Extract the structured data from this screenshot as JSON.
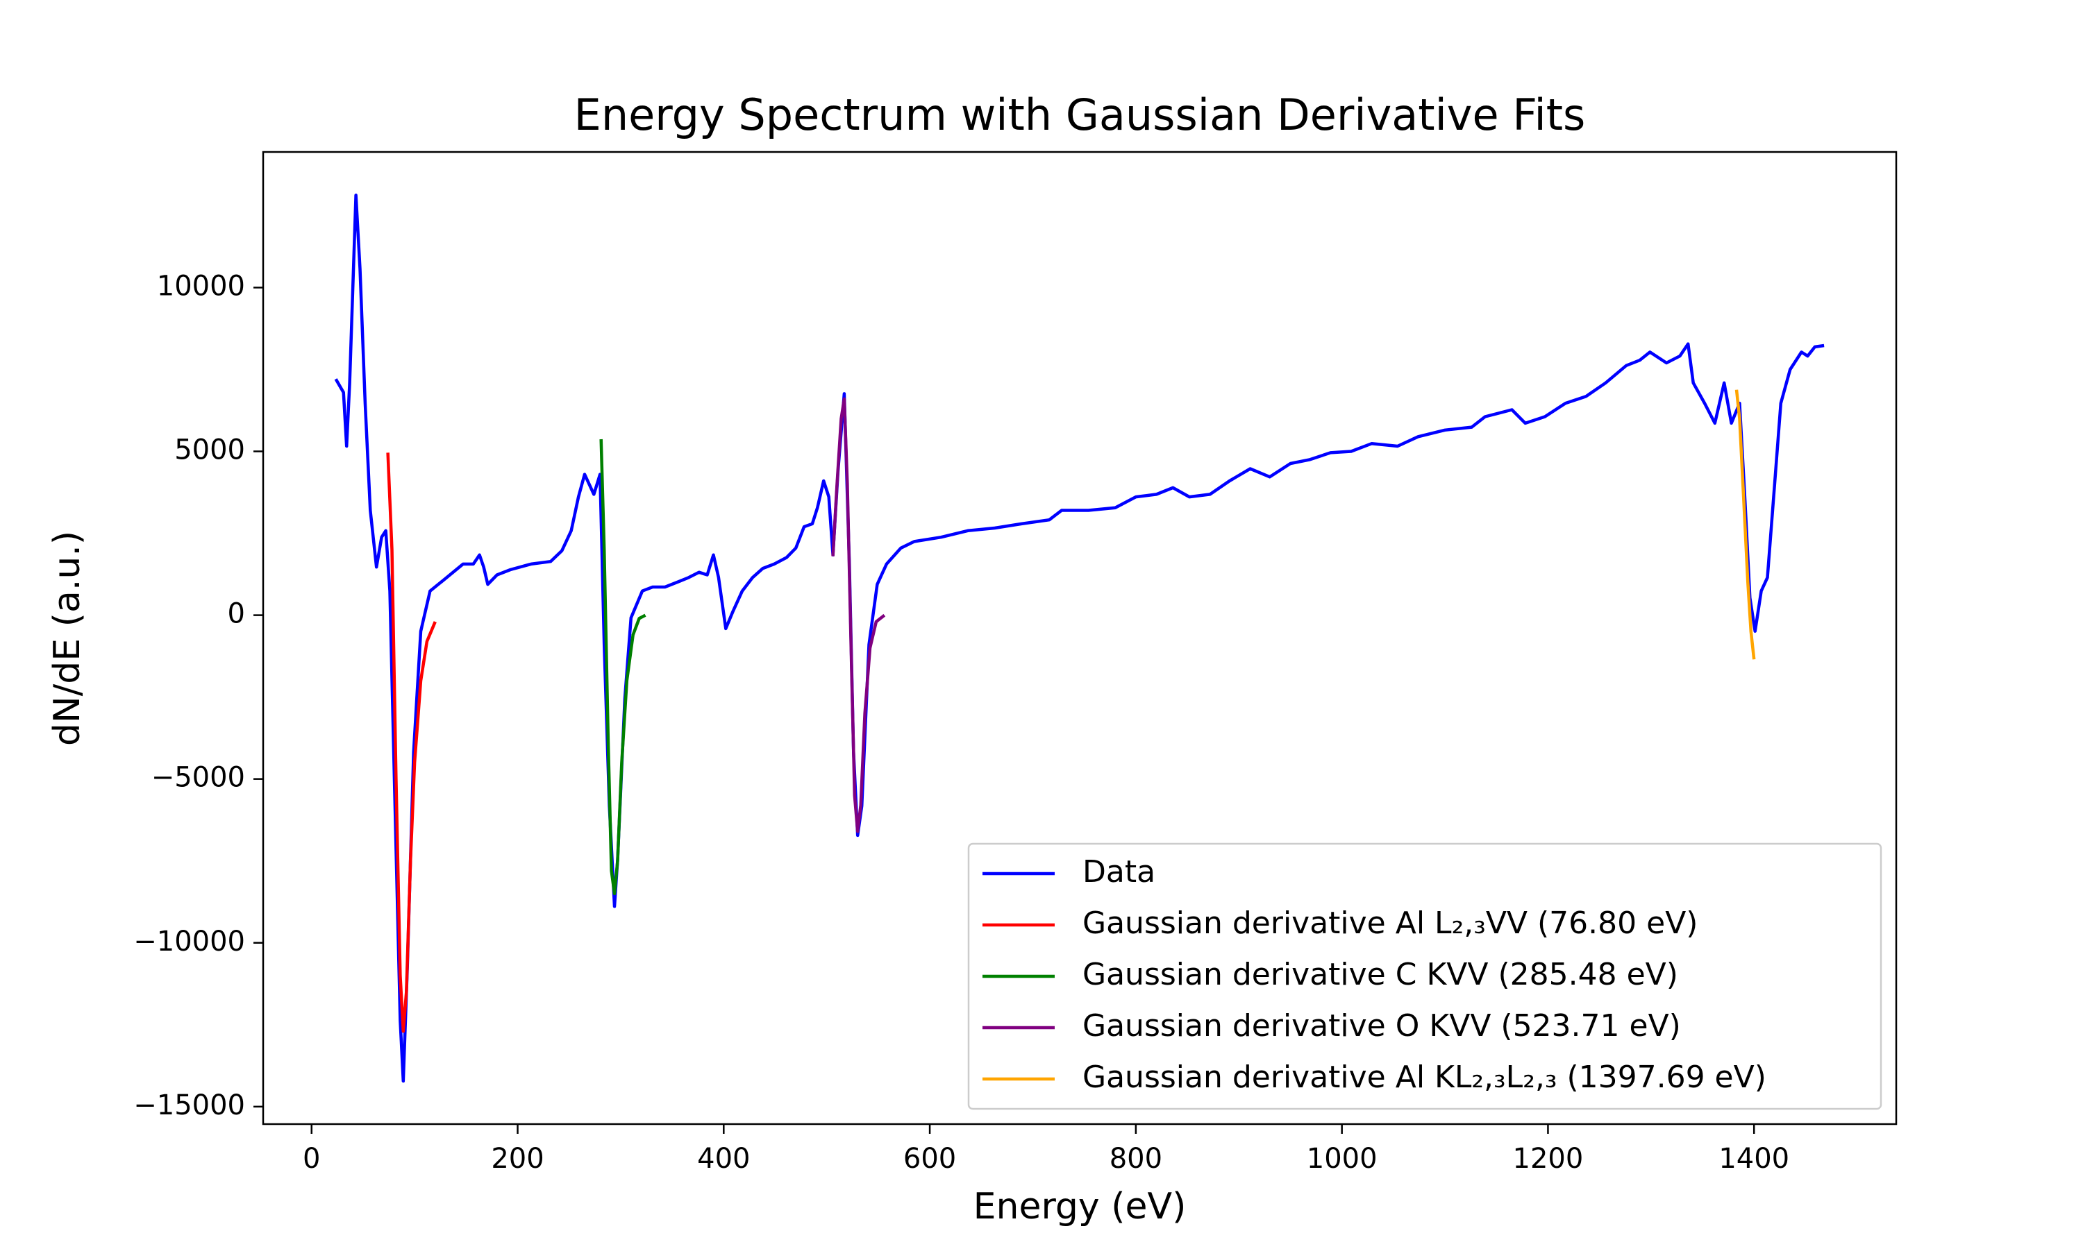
{
  "chart_data": {
    "type": "line",
    "title": "Energy Spectrum with Gaussian Derivative Fits",
    "xlabel": "Energy (eV)",
    "ylabel": "dN/dE (a.u.)",
    "xlim": [
      -47,
      1538
    ],
    "ylim": [
      -15533,
      14139
    ],
    "xticks": [
      0,
      200,
      400,
      600,
      800,
      1000,
      1200,
      1400
    ],
    "yticks": [
      {
        "value": -15000,
        "label": "−15000"
      },
      {
        "value": -10000,
        "label": "−10000"
      },
      {
        "value": -5000,
        "label": "−5000"
      },
      0,
      5000,
      10000
    ],
    "grid": false,
    "legend": "lower right",
    "series": [
      {
        "name": "Data",
        "color": "#0000ff",
        "x": [
          23.5,
          31,
          34,
          37,
          43,
          47,
          52,
          57,
          63,
          68,
          72,
          76,
          81,
          86,
          89,
          93,
          99,
          106,
          115,
          128,
          147,
          157,
          163,
          167,
          171,
          180,
          193,
          213,
          232,
          243,
          252,
          259,
          265,
          274,
          280,
          284,
          289,
          294,
          297,
          304,
          310,
          321,
          331,
          343,
          356,
          366,
          376,
          384,
          390,
          395,
          402,
          409,
          418,
          428,
          438,
          449,
          461,
          470,
          478,
          486,
          491,
          497,
          502,
          506,
          511,
          517,
          522,
          526,
          530,
          534,
          541,
          549,
          558,
          572,
          585,
          611,
          637,
          663,
          689,
          716,
          728,
          754,
          780,
          800,
          820,
          836,
          852,
          872,
          891,
          911,
          930,
          950,
          969,
          989,
          1009,
          1029,
          1054,
          1074,
          1100,
          1126,
          1139,
          1165,
          1178,
          1197,
          1217,
          1237,
          1256,
          1276,
          1289,
          1299,
          1315,
          1328,
          1336,
          1341,
          1352,
          1362,
          1371,
          1378,
          1386,
          1391,
          1396,
          1401,
          1407,
          1413,
          1420,
          1426,
          1435,
          1446,
          1452,
          1459,
          1468
        ],
        "values": [
          7210,
          6800,
          5160,
          7090,
          12820,
          10570,
          6470,
          3200,
          1470,
          2380,
          2580,
          740,
          -5820,
          -12370,
          -14220,
          -10730,
          -4180,
          -490,
          740,
          1070,
          1560,
          1560,
          1840,
          1470,
          940,
          1230,
          1390,
          1560,
          1640,
          1970,
          2580,
          3610,
          4300,
          3690,
          4300,
          -900,
          -5820,
          -8890,
          -7460,
          -2540,
          -80,
          740,
          860,
          860,
          1020,
          1150,
          1310,
          1230,
          1840,
          1150,
          -410,
          120,
          740,
          1150,
          1430,
          1560,
          1760,
          2050,
          2700,
          2790,
          3280,
          4100,
          3610,
          1840,
          4420,
          6760,
          1560,
          -4180,
          -6720,
          -5820,
          -900,
          940,
          1560,
          2050,
          2250,
          2380,
          2580,
          2660,
          2790,
          2910,
          3200,
          3200,
          3280,
          3610,
          3690,
          3890,
          3610,
          3690,
          4100,
          4470,
          4220,
          4630,
          4750,
          4960,
          5000,
          5240,
          5160,
          5450,
          5650,
          5740,
          6060,
          6270,
          5860,
          6060,
          6470,
          6680,
          7090,
          7620,
          7780,
          8030,
          7700,
          7910,
          8280,
          7090,
          6470,
          5860,
          7090,
          5860,
          6470,
          3610,
          530,
          -490,
          740,
          1150,
          4010,
          6470,
          7500,
          8030,
          7910,
          8190,
          8230
        ]
      },
      {
        "name": "Gaussian derivative Al L₂,₃VV (76.80 eV)",
        "color": "#ff0000",
        "x": [
          74,
          78,
          82,
          86,
          89,
          92,
          96,
          100,
          106,
          112,
          120
        ],
        "values": [
          4960,
          2000,
          -5000,
          -11000,
          -12700,
          -11500,
          -7500,
          -4500,
          -2000,
          -800,
          -200
        ]
      },
      {
        "name": "Gaussian derivative C KVV (285.48 eV)",
        "color": "#008000",
        "x": [
          281,
          284,
          288,
          291,
          294,
          297,
          301,
          306,
          312,
          318,
          324
        ],
        "values": [
          5370,
          2000,
          -4000,
          -7800,
          -8500,
          -7500,
          -4500,
          -2000,
          -600,
          -100,
          0
        ]
      },
      {
        "name": "Gaussian derivative O KVV (523.71 eV)",
        "color": "#800080",
        "x": [
          506,
          510,
          514,
          517,
          520,
          524,
          527,
          530,
          533,
          537,
          542,
          548,
          556
        ],
        "values": [
          1800,
          4000,
          6000,
          6600,
          4000,
          -1500,
          -5500,
          -6600,
          -5800,
          -3000,
          -1000,
          -200,
          0
        ]
      },
      {
        "name": "Gaussian derivative Al KL₂,₃L₂,₃ (1397.69 eV)",
        "color": "#ffa500",
        "x": [
          1383,
          1386,
          1390,
          1394,
          1397,
          1400
        ],
        "values": [
          6880,
          6000,
          3500,
          1000,
          -500,
          -1350
        ]
      }
    ]
  }
}
